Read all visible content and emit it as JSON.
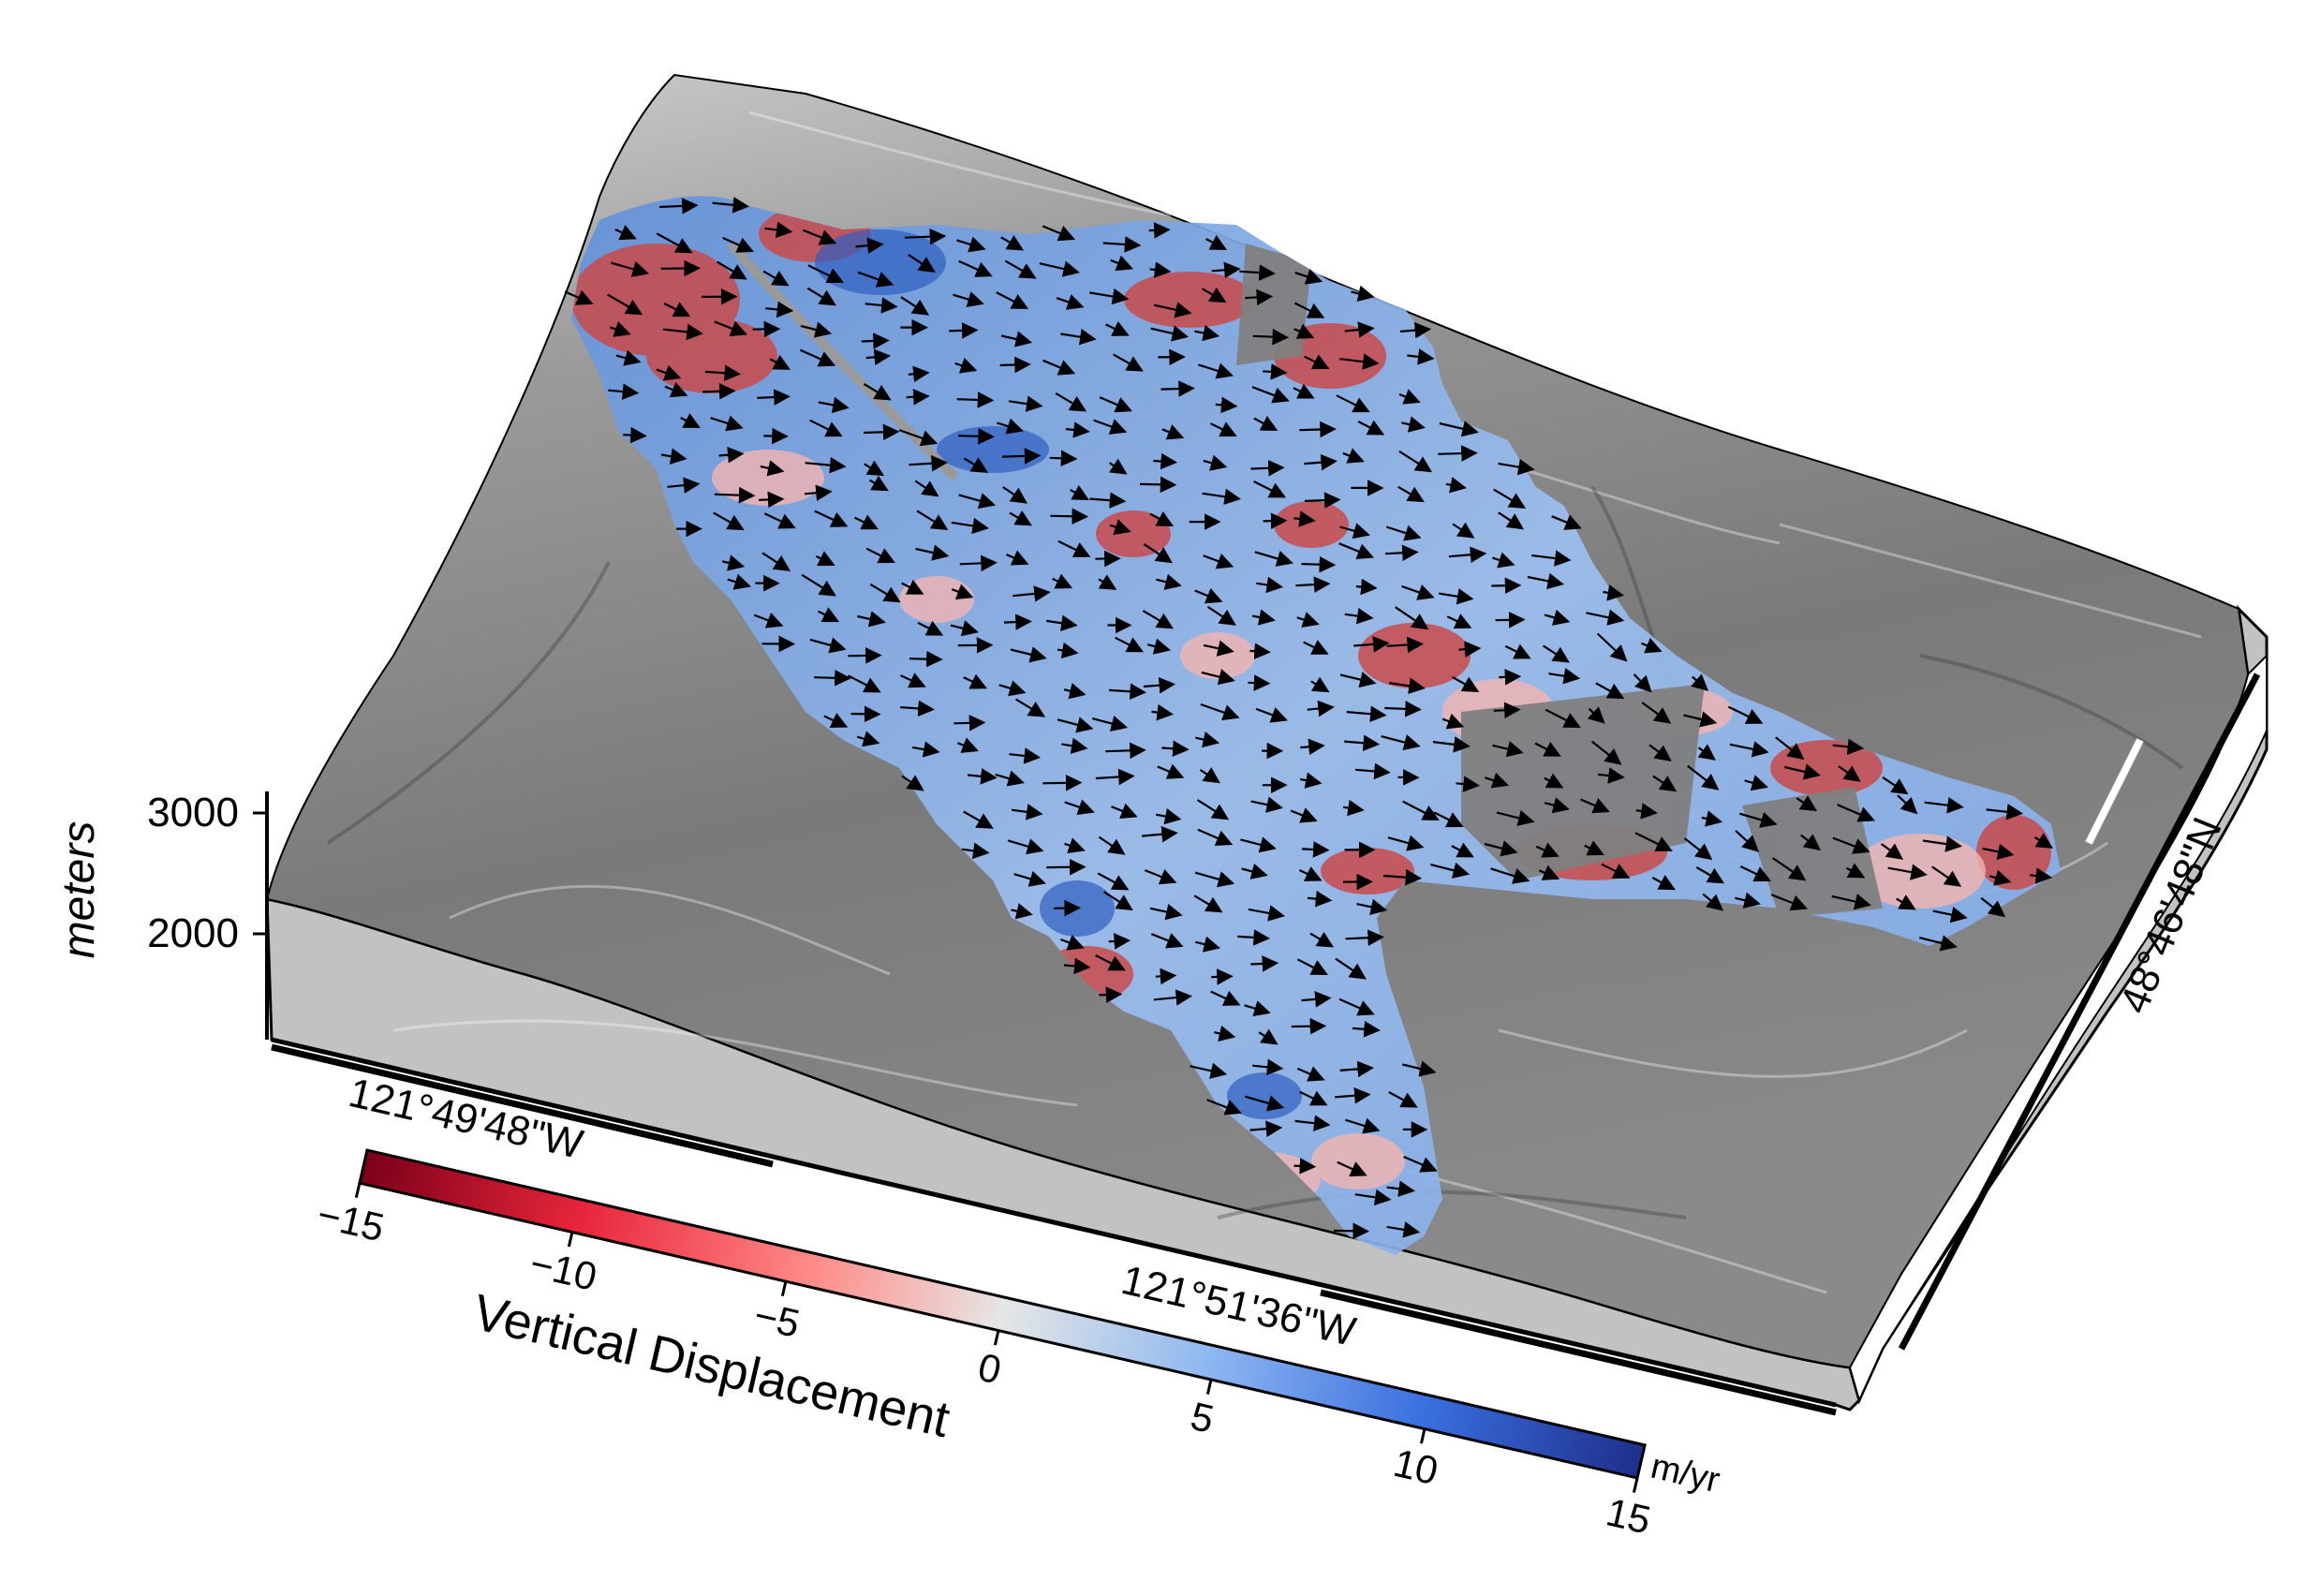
{
  "figure": {
    "elevation_axis": {
      "label": "meters",
      "ticks": [
        "3000",
        "2000"
      ]
    },
    "longitude_labels": [
      "121°49'48\"W",
      "121°51'36\"W"
    ],
    "latitude_labels": [
      "48°46'48\"N"
    ],
    "colorbar": {
      "title": "Vertical Displacement",
      "unit": "m/yr",
      "ticks": [
        "−15",
        "−10",
        "−5",
        "0",
        "5",
        "10",
        "15"
      ],
      "range": [
        -15,
        15
      ],
      "colors": [
        "#7a0019",
        "#e8253a",
        "#ff8a86",
        "#e6e6e6",
        "#8fb8f0",
        "#3a6fe0",
        "#1f2f8a"
      ]
    },
    "colors": {
      "terrain": "#7b7b7b",
      "terrain_light": "#b9b9b9",
      "side_panel": "#c2c2c2",
      "uplift_blue": "#6f9be0",
      "subsidence_red": "#c94a4a",
      "vector_arrow": "#000000"
    },
    "overlay": "velocity-arrows"
  }
}
